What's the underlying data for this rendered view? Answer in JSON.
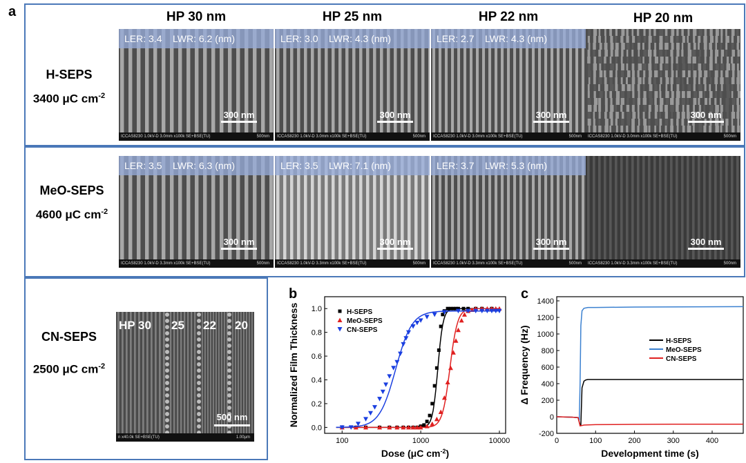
{
  "panel_a": {
    "letter": "a",
    "columns": [
      "HP 30 nm",
      "HP 25 nm",
      "HP 22 nm",
      "HP 20 nm"
    ],
    "rows": [
      {
        "name": "H-SEPS",
        "dose": "3400 μC cm",
        "dose_exp": "-2"
      },
      {
        "name": "MeO-SEPS",
        "dose": "4600 μC cm",
        "dose_exp": "-2"
      },
      {
        "name": "CN-SEPS",
        "dose": "2500 μC cm",
        "dose_exp": "-2"
      }
    ],
    "scale_bar": "300 nm",
    "sem_info": "ICCAS8230 1.0kV-D 3.0mm x100k SE+BSE(TU)",
    "sem_info_row2": "ICCAS8230 1.0kV-D 3.3mm x100k SE+BSE(TU)",
    "sem_mag": "500nm",
    "images": [
      {
        "header": "LER: 3.4    LWR: 6.2 (nm)"
      },
      {
        "header": "LER: 3.0    LWR: 4.3 (nm)"
      },
      {
        "header": "LER: 2.7    LWR: 4.3 (nm)"
      },
      {
        "header": ""
      },
      {
        "header": "LER: 3.5    LWR: 6.3 (nm)"
      },
      {
        "header": "LER: 3.5    LWR: 7.1 (nm)"
      },
      {
        "header": "LER: 3.7    LWR: 5.3 (nm)"
      },
      {
        "header": ""
      }
    ],
    "cn_image": {
      "labels": [
        "HP 30",
        "25",
        "22",
        "20"
      ],
      "scale_bar": "500 nm",
      "info": "n x40.0k SE+BSE(TU)",
      "mag": "1.00µm"
    }
  },
  "chart_data": [
    {
      "panel": "b",
      "type": "scatter",
      "title": "",
      "xlabel": "Dose (μC cm",
      "xlabel_exp": "-2",
      "xlabel_end": ")",
      "ylabel": "Normalized Film Thickness",
      "xscale": "log",
      "xlim": [
        60,
        12000
      ],
      "ylim": [
        -0.05,
        1.1
      ],
      "xticks": [
        100,
        1000,
        10000
      ],
      "xtick_labels": [
        "100",
        "1000",
        "10000"
      ],
      "yticks": [
        0.0,
        0.2,
        0.4,
        0.6,
        0.8,
        1.0
      ],
      "ytick_labels": [
        "0.0",
        "0.2",
        "0.4",
        "0.6",
        "0.8",
        "1.0"
      ],
      "legend": [
        "H-SEPS",
        "MeO-SEPS",
        "CN-SEPS"
      ],
      "series": [
        {
          "name": "H-SEPS",
          "color": "#000000",
          "marker": "square",
          "x": [
            100,
            150,
            200,
            300,
            400,
            500,
            600,
            700,
            800,
            900,
            1000,
            1100,
            1200,
            1300,
            1400,
            1500,
            1600,
            1700,
            1800,
            1900,
            2000,
            2200,
            2400,
            2600,
            2800,
            3000,
            3500,
            4000,
            5000,
            6000,
            8000
          ],
          "y": [
            0,
            0,
            0,
            0,
            0,
            0,
            0,
            0,
            0,
            0,
            0.01,
            0.02,
            0.05,
            0.1,
            0.2,
            0.35,
            0.5,
            0.65,
            0.85,
            0.95,
            0.98,
            1.0,
            1.0,
            1.0,
            1.0,
            1.0,
            1.0,
            1.0,
            1.0,
            1.0,
            1.0
          ],
          "fit_mid": 1650,
          "fit_k": 13
        },
        {
          "name": "MeO-SEPS",
          "color": "#e02020",
          "marker": "triangle-up",
          "x": [
            100,
            150,
            200,
            300,
            400,
            500,
            600,
            700,
            800,
            900,
            1000,
            1200,
            1400,
            1600,
            1800,
            2000,
            2200,
            2400,
            2600,
            2800,
            3000,
            3300,
            3600,
            4000,
            4500,
            5000,
            6000,
            7000,
            8000,
            9000,
            10000
          ],
          "y": [
            0,
            0,
            0,
            0,
            0,
            0,
            0,
            0,
            0,
            0,
            0.0,
            0.01,
            0.03,
            0.07,
            0.13,
            0.25,
            0.38,
            0.5,
            0.63,
            0.73,
            0.82,
            0.9,
            0.95,
            0.98,
            0.99,
            1.0,
            1.0,
            1.0,
            1.0,
            1.0,
            1.0
          ],
          "fit_mid": 2350,
          "fit_k": 9
        },
        {
          "name": "CN-SEPS",
          "color": "#1a3fe0",
          "marker": "triangle-down",
          "x": [
            100,
            130,
            160,
            200,
            230,
            260,
            300,
            330,
            360,
            400,
            450,
            500,
            550,
            600,
            650,
            700,
            800,
            900,
            1000,
            1200,
            1500,
            2000,
            3000,
            4000,
            5000,
            6000,
            7000,
            8000,
            9000,
            10000
          ],
          "y": [
            0,
            0,
            0.03,
            0.07,
            0.12,
            0.17,
            0.24,
            0.3,
            0.36,
            0.43,
            0.5,
            0.55,
            0.62,
            0.7,
            0.75,
            0.8,
            0.85,
            0.88,
            0.9,
            0.93,
            0.95,
            0.97,
            0.98,
            0.98,
            0.98,
            0.98,
            0.98,
            0.98,
            0.98,
            0.98
          ],
          "fit_mid": 480,
          "fit_k": 4.2,
          "fit_max": 0.98
        }
      ]
    },
    {
      "panel": "c",
      "type": "line",
      "title": "",
      "xlabel": "Development time (s)",
      "ylabel": "Δ Frequency (Hz)",
      "xlim": [
        0,
        480
      ],
      "ylim": [
        -200,
        1450
      ],
      "xticks": [
        0,
        100,
        200,
        300,
        400
      ],
      "yticks": [
        -200,
        0,
        200,
        400,
        600,
        800,
        1000,
        1200,
        1400
      ],
      "legend": [
        "H-SEPS",
        "MeO-SEPS",
        "CN-SEPS"
      ],
      "series": [
        {
          "name": "H-SEPS",
          "color": "#000000",
          "x": [
            0,
            40,
            55,
            60,
            62,
            65,
            70,
            75,
            80,
            480
          ],
          "y": [
            0,
            -5,
            -10,
            -100,
            -100,
            350,
            430,
            445,
            450,
            450
          ]
        },
        {
          "name": "MeO-SEPS",
          "color": "#3a80d0",
          "x": [
            0,
            40,
            55,
            58,
            60,
            62,
            65,
            70,
            80,
            100,
            200,
            480
          ],
          "y": [
            0,
            -5,
            -10,
            -40,
            400,
            1100,
            1280,
            1310,
            1320,
            1320,
            1325,
            1330
          ]
        },
        {
          "name": "CN-SEPS",
          "color": "#e02020",
          "x": [
            0,
            40,
            55,
            60,
            70,
            100,
            200,
            300,
            480
          ],
          "y": [
            0,
            -5,
            -10,
            -110,
            -100,
            -95,
            -92,
            -90,
            -90
          ]
        }
      ]
    }
  ]
}
